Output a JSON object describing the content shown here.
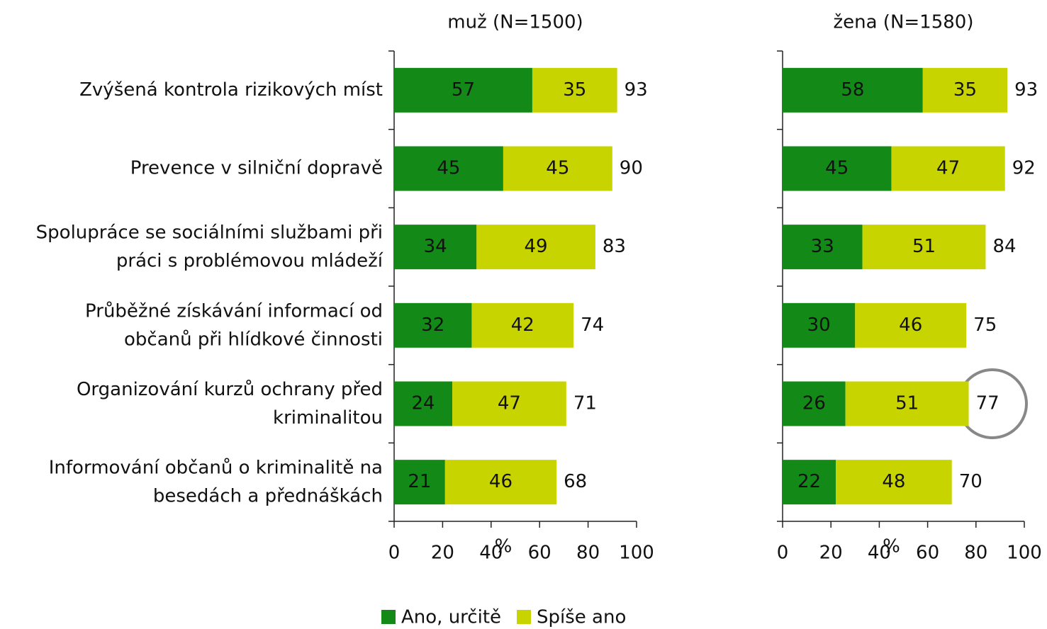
{
  "chart_data": [
    {
      "type": "bar",
      "orientation": "horizontal",
      "stacked": true,
      "title": "muž (N=1500)",
      "categories": [
        "Zvýšená kontrola rizikových míst",
        "Prevence v silniční dopravě",
        "Spolupráce se sociálními službami při\npráci s problémovou mládeží",
        "Průběžné získávání informací od\nobčanů při hlídkové činnosti",
        "Organizování kurzů ochrany před\nkriminalitou",
        "Informování občanů o kriminalitě na\nbesedách a přednáškách"
      ],
      "series": [
        {
          "name": "Ano, určitě",
          "color": "#138a17",
          "values": [
            57,
            45,
            34,
            32,
            24,
            21
          ]
        },
        {
          "name": "Spíše ano",
          "color": "#c8d400",
          "values": [
            35,
            45,
            49,
            42,
            47,
            46
          ]
        }
      ],
      "totals": [
        93,
        90,
        83,
        74,
        71,
        68
      ],
      "xlabel": "%",
      "xlim": [
        0,
        100
      ],
      "xticks": [
        0,
        20,
        40,
        60,
        80,
        100
      ],
      "legend": "bottom"
    },
    {
      "type": "bar",
      "orientation": "horizontal",
      "stacked": true,
      "title": "žena (N=1580)",
      "categories": [
        null,
        null,
        null,
        null,
        null,
        null
      ],
      "series": [
        {
          "name": "Ano, určitě",
          "color": "#138a17",
          "values": [
            58,
            45,
            33,
            30,
            26,
            22
          ]
        },
        {
          "name": "Spíše ano",
          "color": "#c8d400",
          "values": [
            35,
            47,
            51,
            46,
            51,
            48
          ]
        }
      ],
      "totals": [
        93,
        92,
        84,
        75,
        77,
        70
      ],
      "xlabel": "%",
      "xlim": [
        0,
        100
      ],
      "xticks": [
        0,
        20,
        40,
        60,
        80,
        100
      ]
    }
  ]
}
